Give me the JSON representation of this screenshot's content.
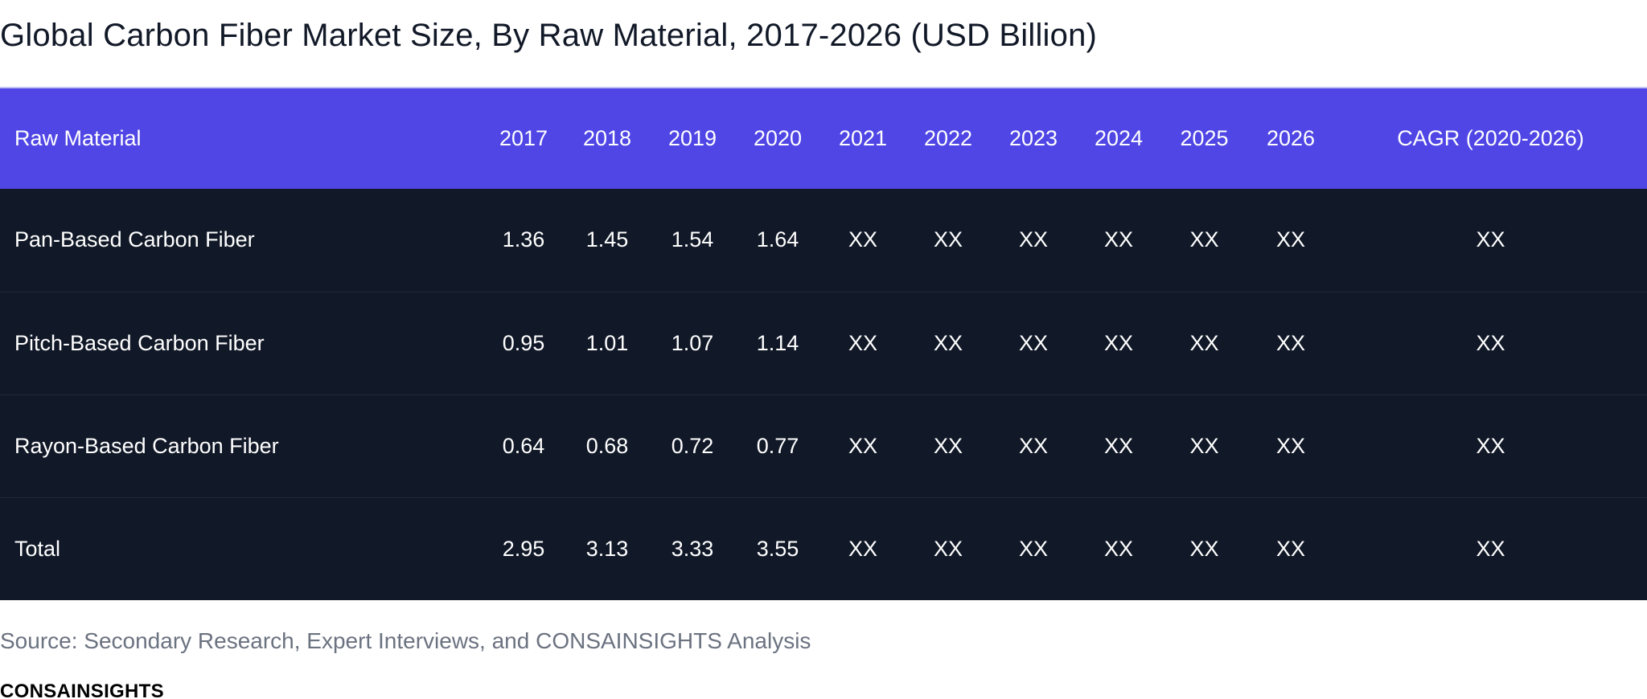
{
  "chart_data": {
    "type": "table",
    "title": "Global Carbon Fiber Market Size, By Raw Material, 2017-2026 (USD Billion)",
    "columns": [
      "Raw Material",
      "2017",
      "2018",
      "2019",
      "2020",
      "2021",
      "2022",
      "2023",
      "2024",
      "2025",
      "2026",
      "CAGR (2020-2026)"
    ],
    "rows": [
      {
        "name": "Pan-Based Carbon Fiber",
        "values": [
          "1.36",
          "1.45",
          "1.54",
          "1.64",
          "XX",
          "XX",
          "XX",
          "XX",
          "XX",
          "XX",
          "XX"
        ]
      },
      {
        "name": "Pitch-Based Carbon Fiber",
        "values": [
          "0.95",
          "1.01",
          "1.07",
          "1.14",
          "XX",
          "XX",
          "XX",
          "XX",
          "XX",
          "XX",
          "XX"
        ]
      },
      {
        "name": "Rayon-Based Carbon Fiber",
        "values": [
          "0.64",
          "0.68",
          "0.72",
          "0.77",
          "XX",
          "XX",
          "XX",
          "XX",
          "XX",
          "XX",
          "XX"
        ]
      },
      {
        "name": "Total",
        "values": [
          "2.95",
          "3.13",
          "3.33",
          "3.55",
          "XX",
          "XX",
          "XX",
          "XX",
          "XX",
          "XX",
          "XX"
        ]
      }
    ],
    "source": "Source: Secondary Research, Expert Interviews, and CONSAINSIGHTS Analysis"
  },
  "brand": "CONSAINSIGHTS",
  "colors": {
    "header_bg": "#4f46e5",
    "body_bg": "#111827",
    "text_light": "#ffffff",
    "source_text": "#6b7280"
  }
}
